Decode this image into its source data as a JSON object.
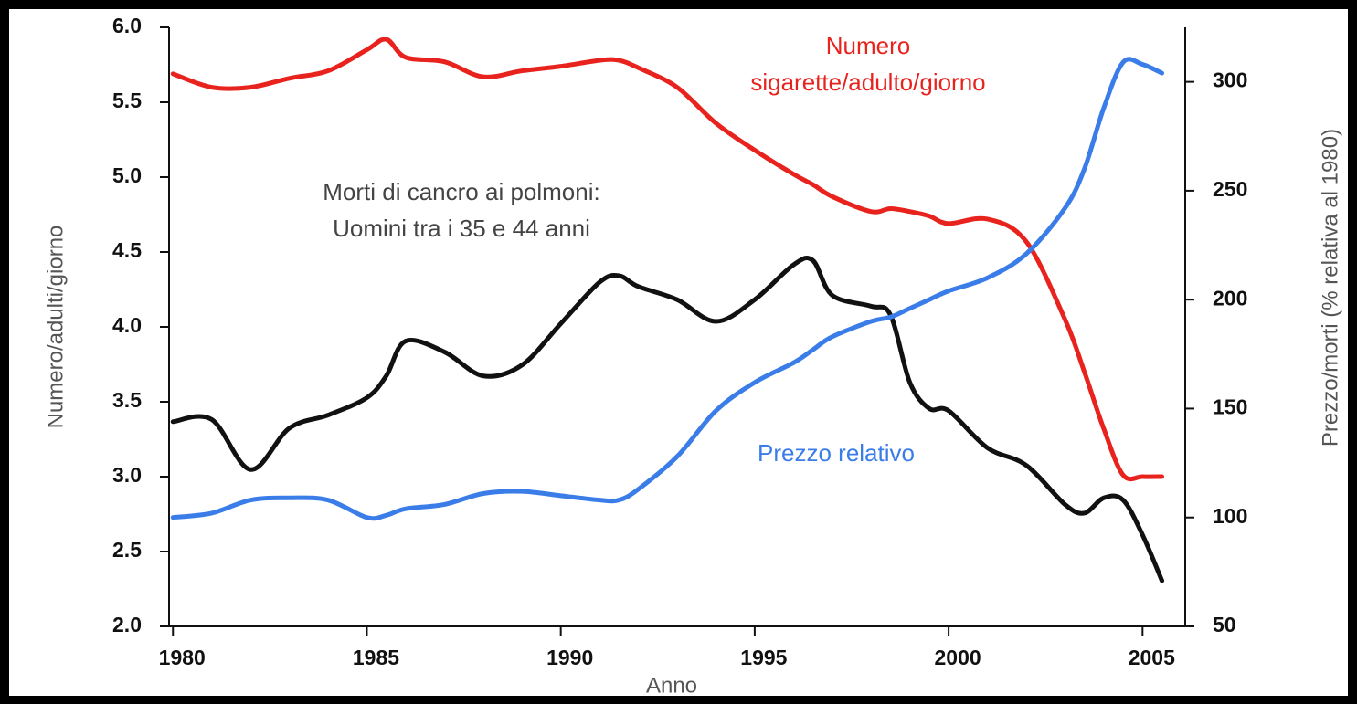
{
  "chart_data": {
    "type": "line",
    "x_label": "Anno",
    "y_label": "Numero/adulti/giorno",
    "y2_label": "Prezzo/morti (% relativa al 1980)",
    "x": [
      1980,
      1981,
      1982,
      1983,
      1984,
      1985,
      1985.5,
      1986,
      1987,
      1988,
      1989,
      1990,
      1991,
      1991.5,
      1992,
      1993,
      1994,
      1995,
      1996,
      1996.5,
      1997,
      1998,
      1998.5,
      1999,
      1999.5,
      2000,
      2001,
      2002,
      2003,
      2003.5,
      2004,
      2004.5,
      2005,
      2005.5
    ],
    "xlim": [
      1979.9,
      2006.1
    ],
    "xticks": [
      1980,
      1985,
      1990,
      1995,
      2000,
      2005
    ],
    "ylim": [
      2,
      6
    ],
    "yticks": [
      {
        "value": 2,
        "label": "2.0"
      },
      {
        "value": 2.5,
        "label": "2.5"
      },
      {
        "value": 3,
        "label": "3.0"
      },
      {
        "value": 3.5,
        "label": "3.5"
      },
      {
        "value": 4,
        "label": "4.0"
      },
      {
        "value": 4.5,
        "label": "4.5"
      },
      {
        "value": 5,
        "label": "5.0"
      },
      {
        "value": 5.5,
        "label": "5.5"
      },
      {
        "value": 6,
        "label": "6.0"
      }
    ],
    "y2lim": [
      50,
      325
    ],
    "y2ticks": [
      50,
      100,
      150,
      200,
      250,
      300
    ],
    "series": [
      {
        "name": "Numero sigarette/adulto/giorno",
        "color": "#e8231e",
        "values": [
          5.69,
          5.6,
          5.6,
          5.66,
          5.71,
          5.85,
          5.92,
          5.8,
          5.77,
          5.67,
          5.71,
          5.74,
          5.78,
          5.78,
          5.73,
          5.6,
          5.36,
          5.18,
          5.02,
          4.95,
          4.87,
          4.77,
          4.79,
          4.77,
          4.74,
          4.69,
          4.72,
          4.57,
          4.05,
          3.7,
          3.32,
          3.01,
          3.0,
          3.0
        ]
      },
      {
        "name": "Morti di cancro ai polmoni: Uomini tra i 35 e 44 anni",
        "color": "#111111",
        "axis": "y2",
        "values": [
          144,
          145,
          122,
          141,
          147,
          155,
          165,
          181,
          176,
          165,
          170,
          189,
          208,
          211,
          206,
          200,
          190,
          200,
          216,
          218,
          202,
          197,
          193,
          162,
          150,
          149,
          132,
          124,
          106,
          102,
          109,
          108,
          92,
          71
        ]
      },
      {
        "name": "Prezzo relativo",
        "color": "#3b7de8",
        "axis": "y2",
        "values": [
          100,
          102,
          108,
          109,
          108,
          100,
          101,
          104,
          106,
          111,
          112,
          110,
          108,
          108,
          113,
          128,
          149,
          162,
          171,
          177,
          183,
          190,
          192,
          196,
          200,
          204,
          210,
          221,
          242,
          260,
          288,
          309,
          308,
          304
        ]
      }
    ]
  }
}
